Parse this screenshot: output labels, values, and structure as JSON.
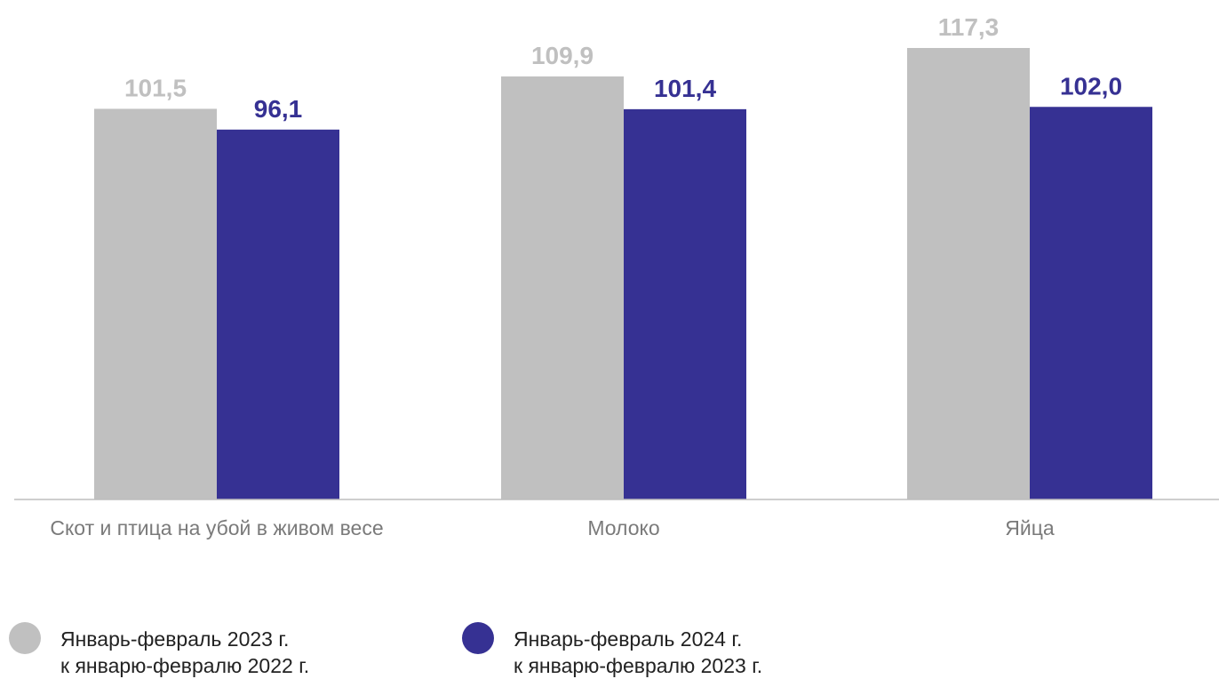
{
  "chart_data": {
    "type": "bar",
    "categories": [
      "Скот и птица на убой в живом весе",
      "Молоко",
      "Яйца"
    ],
    "series": [
      {
        "name": "Январь-февраль 2023 г. к январю-февралю 2022 г.",
        "legend_lines": [
          "Январь-февраль 2023 г.",
          "к январю-февралю 2022 г."
        ],
        "values": [
          101.5,
          109.9,
          117.3
        ],
        "labels": [
          "101,5",
          "109,9",
          "117,3"
        ],
        "color": "#c0c0c0",
        "label_color": "#c0c0c0"
      },
      {
        "name": "Январь-февраль 2024 г. к январю-февралю 2023 г.",
        "legend_lines": [
          "Январь-февраль 2024 г.",
          "к  январю-февралю 2023 г."
        ],
        "values": [
          96.1,
          101.4,
          102.0
        ],
        "labels": [
          "96,1",
          "101,4",
          "102,0"
        ],
        "color": "#363193",
        "label_color": "#363193"
      }
    ],
    "ylim": [
      0,
      117.3
    ],
    "grid": false,
    "legend_position": "bottom-left",
    "title": "",
    "xlabel": "",
    "ylabel": ""
  }
}
